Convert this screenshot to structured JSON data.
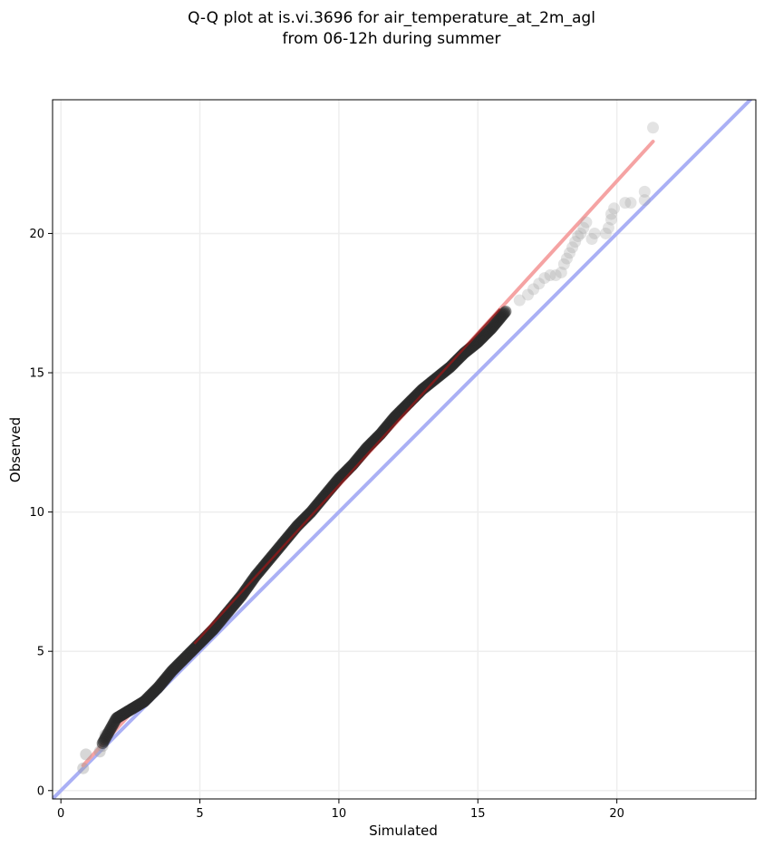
{
  "chart_data": {
    "type": "scatter",
    "title": [
      "Q-Q plot at is.vi.3696 for air_temperature_at_2m_agl",
      "from 06-12h during summer"
    ],
    "xlabel": "Simulated",
    "ylabel": "Observed",
    "xlim": [
      -0.3,
      25.0
    ],
    "ylim": [
      -0.3,
      24.8
    ],
    "xticks": [
      0,
      5,
      10,
      15,
      20
    ],
    "yticks": [
      0,
      5,
      10,
      15,
      20
    ],
    "grid": true,
    "colors": {
      "points": "#2a2a2a",
      "fit_line": "#f5a3a3",
      "identity_line": "#aab0f5",
      "fit_core": "#8b1a1a",
      "grid": "#eeeeee"
    },
    "identity_line": {
      "x": [
        -0.3,
        25.0
      ],
      "y": [
        -0.3,
        25.0
      ]
    },
    "fit_line": {
      "x": [
        0.8,
        21.3
      ],
      "y": [
        0.9,
        23.3
      ]
    },
    "sparse_points": [
      [
        0.8,
        0.8
      ],
      [
        0.9,
        1.3
      ],
      [
        1.4,
        1.4
      ],
      [
        1.5,
        1.6
      ],
      [
        1.6,
        2.0
      ],
      [
        16.5,
        17.6
      ],
      [
        16.8,
        17.8
      ],
      [
        17.0,
        18.0
      ],
      [
        17.2,
        18.2
      ],
      [
        17.4,
        18.4
      ],
      [
        17.6,
        18.5
      ],
      [
        17.8,
        18.5
      ],
      [
        18.0,
        18.6
      ],
      [
        18.1,
        18.9
      ],
      [
        18.2,
        19.1
      ],
      [
        18.3,
        19.3
      ],
      [
        18.4,
        19.5
      ],
      [
        18.5,
        19.7
      ],
      [
        18.6,
        19.9
      ],
      [
        18.7,
        20.0
      ],
      [
        18.8,
        20.2
      ],
      [
        18.9,
        20.4
      ],
      [
        19.1,
        19.8
      ],
      [
        19.2,
        20.0
      ],
      [
        19.6,
        20.0
      ],
      [
        19.7,
        20.2
      ],
      [
        19.8,
        20.5
      ],
      [
        19.8,
        20.7
      ],
      [
        19.9,
        20.9
      ],
      [
        20.3,
        21.1
      ],
      [
        20.5,
        21.1
      ],
      [
        21.0,
        21.2
      ],
      [
        21.0,
        21.5
      ],
      [
        21.3,
        23.8
      ]
    ],
    "dense_curve": [
      [
        1.5,
        1.7
      ],
      [
        2.0,
        2.6
      ],
      [
        2.5,
        2.9
      ],
      [
        3.0,
        3.2
      ],
      [
        3.5,
        3.7
      ],
      [
        4.0,
        4.3
      ],
      [
        4.5,
        4.8
      ],
      [
        5.0,
        5.3
      ],
      [
        5.5,
        5.8
      ],
      [
        6.0,
        6.4
      ],
      [
        6.5,
        7.0
      ],
      [
        7.0,
        7.7
      ],
      [
        7.5,
        8.3
      ],
      [
        8.0,
        8.9
      ],
      [
        8.5,
        9.5
      ],
      [
        9.0,
        10.0
      ],
      [
        9.5,
        10.6
      ],
      [
        10.0,
        11.2
      ],
      [
        10.5,
        11.7
      ],
      [
        11.0,
        12.3
      ],
      [
        11.5,
        12.8
      ],
      [
        12.0,
        13.4
      ],
      [
        12.5,
        13.9
      ],
      [
        13.0,
        14.4
      ],
      [
        13.5,
        14.8
      ],
      [
        14.0,
        15.2
      ],
      [
        14.5,
        15.7
      ],
      [
        15.0,
        16.1
      ],
      [
        15.5,
        16.6
      ],
      [
        16.0,
        17.2
      ]
    ]
  }
}
